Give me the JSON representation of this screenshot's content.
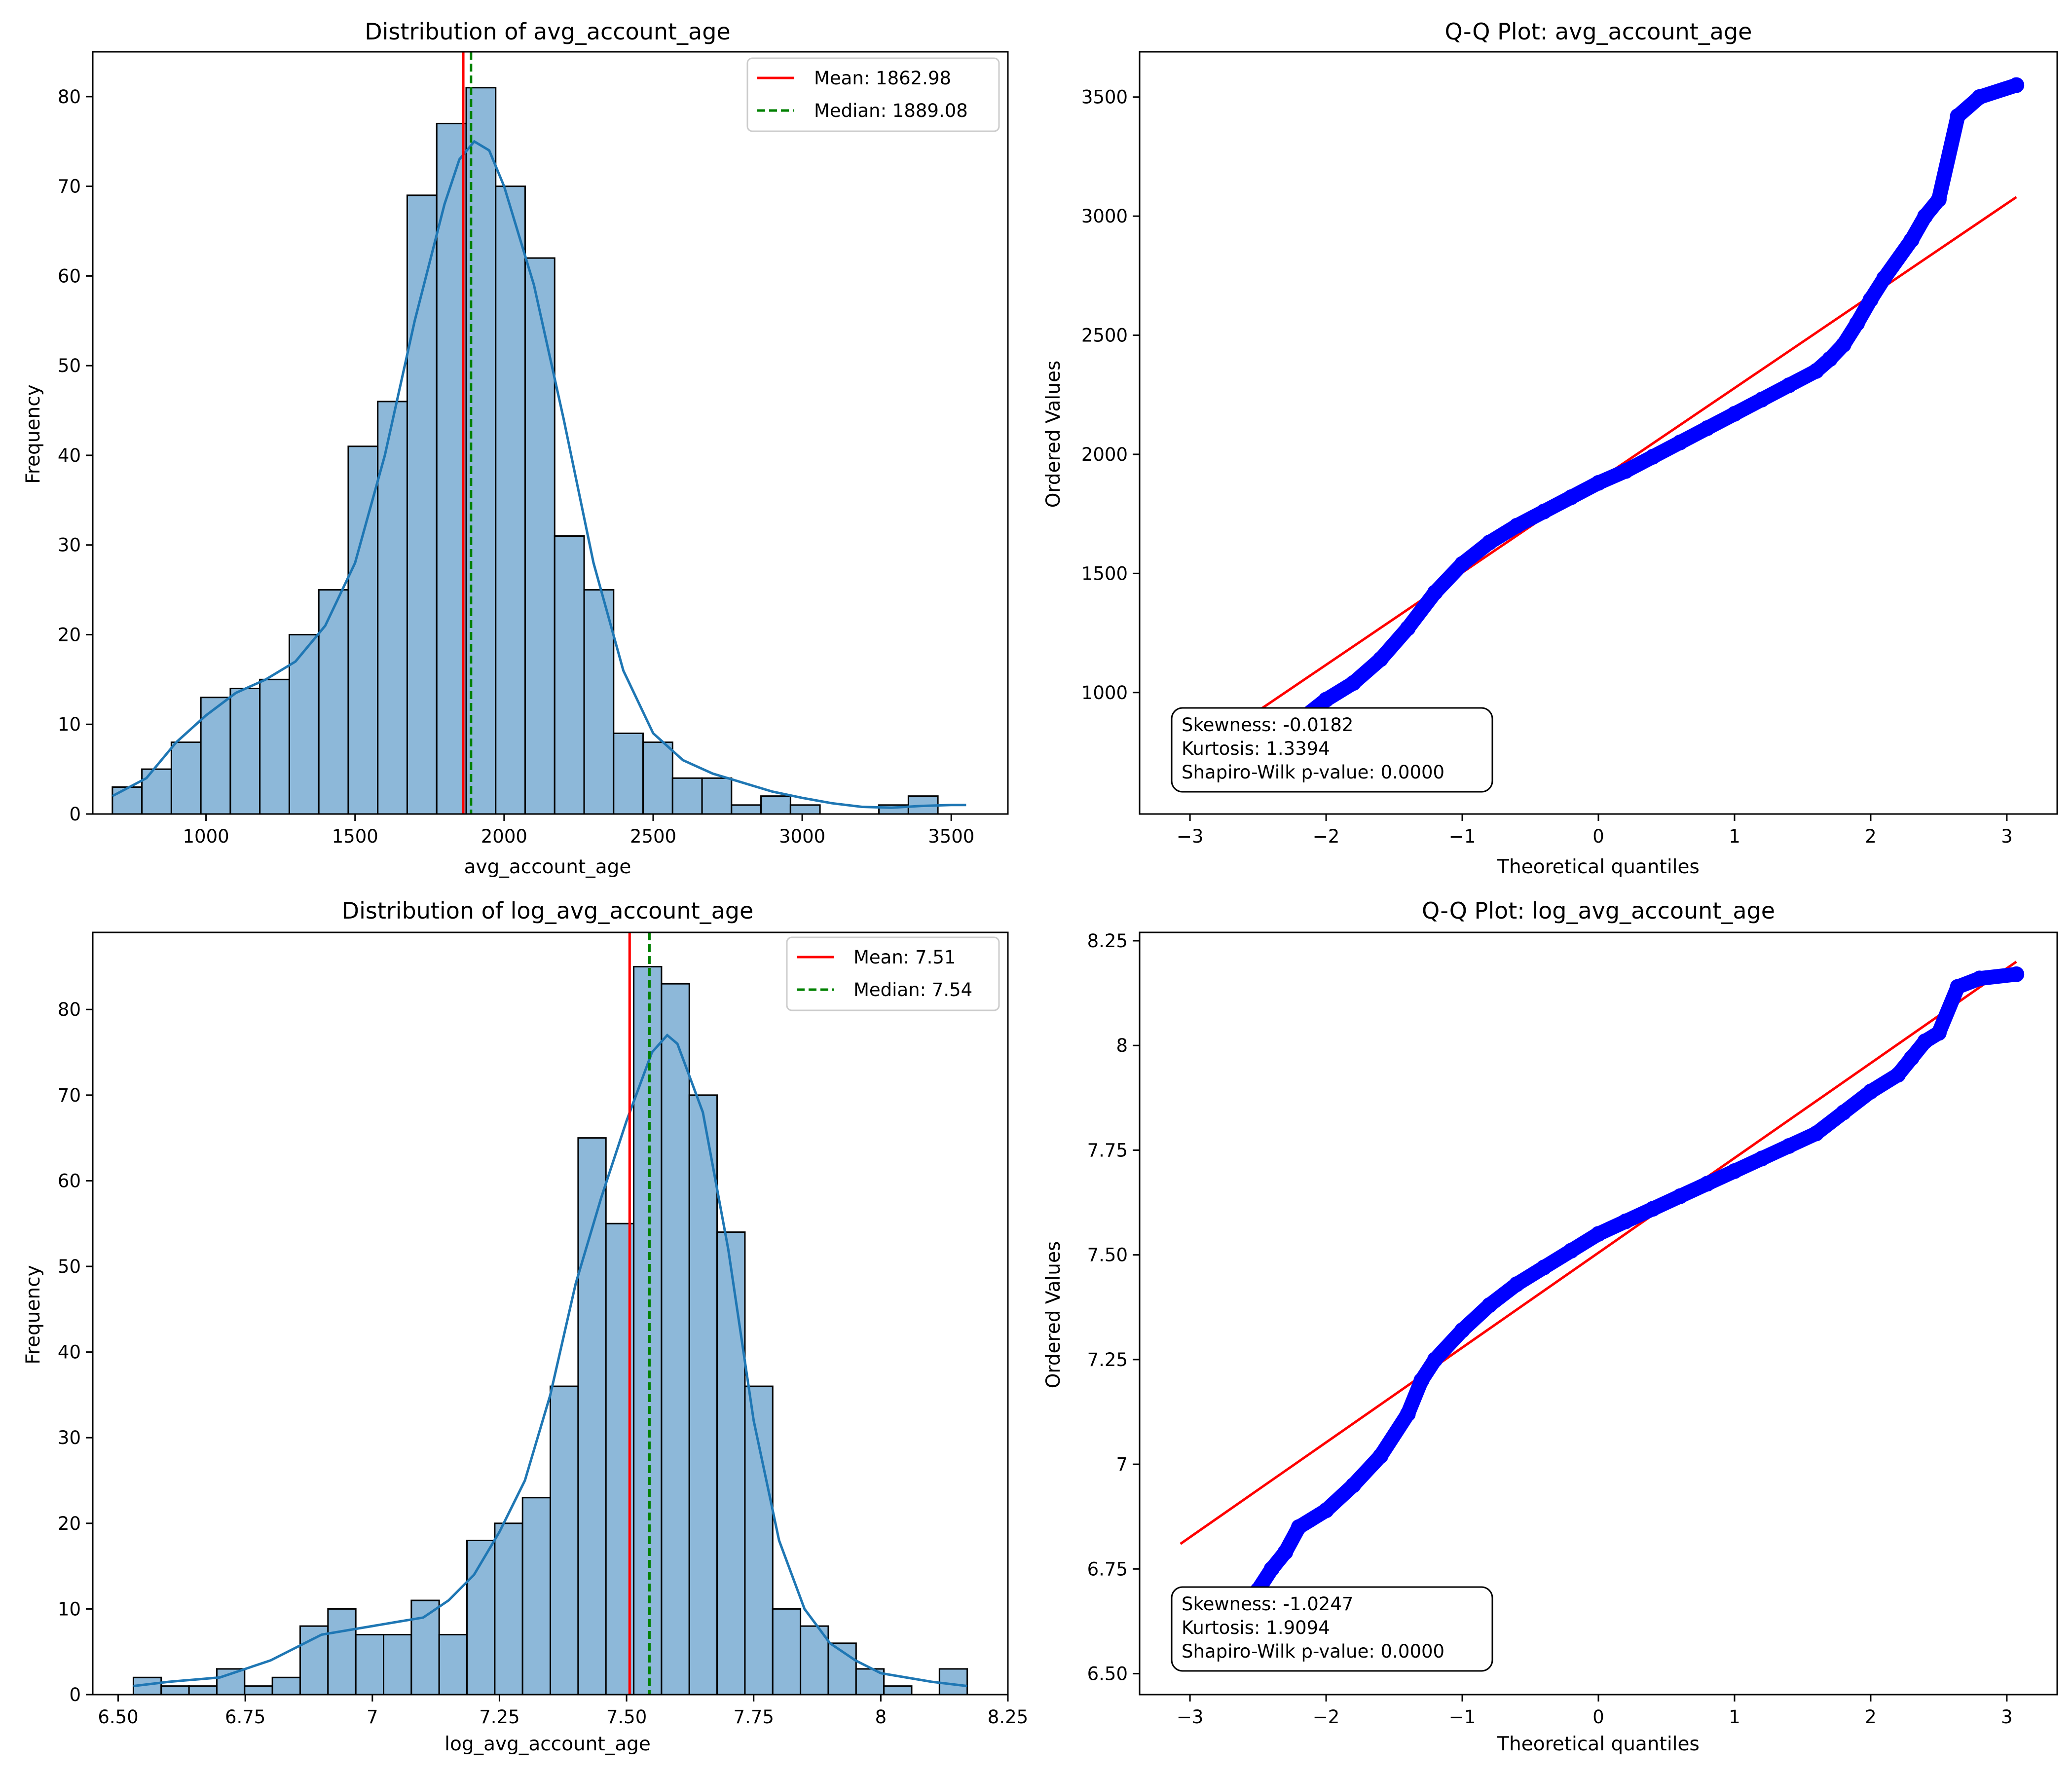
{
  "chart_data": [
    {
      "id": "hist_raw",
      "type": "bar",
      "title": "Distribution of avg_account_age",
      "xlabel": "avg_account_age",
      "ylabel": "Frequency",
      "xlim": [
        620,
        3690
      ],
      "ylim": [
        0,
        85
      ],
      "xticks": [
        1000,
        1500,
        2000,
        2500,
        3000,
        3500
      ],
      "yticks": [
        0,
        10,
        20,
        30,
        40,
        50,
        60,
        70,
        80
      ],
      "bin_start": 686,
      "bin_width": 98.9,
      "counts": [
        3,
        5,
        8,
        13,
        14,
        15,
        20,
        25,
        41,
        46,
        69,
        77,
        81,
        70,
        62,
        31,
        25,
        9,
        8,
        4,
        4,
        1,
        2,
        1,
        0,
        0,
        1,
        2
      ],
      "kde": {
        "x": [
          686,
          800,
          900,
          1000,
          1100,
          1200,
          1300,
          1400,
          1500,
          1600,
          1700,
          1800,
          1850,
          1900,
          1950,
          2000,
          2100,
          2200,
          2300,
          2400,
          2500,
          2600,
          2700,
          2800,
          2900,
          3000,
          3100,
          3200,
          3300,
          3400,
          3500,
          3550
        ],
        "y": [
          2,
          4,
          8,
          11,
          13.5,
          15,
          17,
          21,
          28,
          40,
          55,
          68,
          73,
          75,
          74,
          70,
          59,
          44,
          28,
          16,
          9,
          6,
          4.5,
          3.5,
          2.5,
          1.8,
          1.2,
          0.8,
          0.7,
          0.9,
          1,
          1
        ]
      },
      "series": [
        {
          "name": "Mean: 1862.98",
          "x": 1862.98,
          "color": "#ff0000",
          "style": "solid"
        },
        {
          "name": "Median: 1889.08",
          "x": 1889.08,
          "color": "#008000",
          "style": "dashed"
        }
      ],
      "legend_placement": "upper-right",
      "bar_color": "#8db8d9",
      "kde_color": "#1f77b4"
    },
    {
      "id": "qq_raw",
      "type": "scatter",
      "title": "Q-Q Plot: avg_account_age",
      "xlabel": "Theoretical quantiles",
      "ylabel": "Ordered Values",
      "xlim": [
        -3.37,
        3.37
      ],
      "ylim": [
        490,
        3690
      ],
      "xticks": [
        -3,
        -2,
        -1,
        0,
        1,
        2,
        3
      ],
      "yticks": [
        1000,
        1500,
        2000,
        2500,
        3000,
        3500
      ],
      "points": [
        [
          -3.07,
          686
        ],
        [
          -2.8,
          725
        ],
        [
          -2.6,
          760
        ],
        [
          -2.4,
          800
        ],
        [
          -2.2,
          880
        ],
        [
          -2.0,
          970
        ],
        [
          -1.8,
          1040
        ],
        [
          -1.6,
          1140
        ],
        [
          -1.4,
          1270
        ],
        [
          -1.2,
          1420
        ],
        [
          -1.0,
          1540
        ],
        [
          -0.8,
          1630
        ],
        [
          -0.6,
          1700
        ],
        [
          -0.4,
          1760
        ],
        [
          -0.2,
          1820
        ],
        [
          0.0,
          1880
        ],
        [
          0.2,
          1930
        ],
        [
          0.4,
          1990
        ],
        [
          0.6,
          2050
        ],
        [
          0.8,
          2110
        ],
        [
          1.0,
          2170
        ],
        [
          1.2,
          2230
        ],
        [
          1.4,
          2290
        ],
        [
          1.6,
          2350
        ],
        [
          1.7,
          2400
        ],
        [
          1.8,
          2460
        ],
        [
          1.9,
          2550
        ],
        [
          2.0,
          2650
        ],
        [
          2.1,
          2740
        ],
        [
          2.3,
          2900
        ],
        [
          2.4,
          3000
        ],
        [
          2.5,
          3070
        ],
        [
          2.64,
          3420
        ],
        [
          2.8,
          3500
        ],
        [
          3.07,
          3550
        ]
      ],
      "fit_line": {
        "x": [
          -3.07,
          3.07
        ],
        "y": [
          702,
          3080
        ],
        "color": "#ff0000"
      },
      "point_color": "#0000ff",
      "stats": [
        "Skewness: -0.0182",
        "Kurtosis: 1.3394",
        "Shapiro-Wilk p-value: 0.0000"
      ]
    },
    {
      "id": "hist_log",
      "type": "bar",
      "title": "Distribution of log_avg_account_age",
      "xlabel": "log_avg_account_age",
      "ylabel": "Frequency",
      "xlim": [
        6.45,
        8.25
      ],
      "ylim": [
        0,
        89
      ],
      "xticks": [
        6.5,
        6.75,
        7.0,
        7.25,
        7.5,
        7.75,
        8.0,
        8.25
      ],
      "yticks": [
        0,
        10,
        20,
        30,
        40,
        50,
        60,
        70,
        80
      ],
      "bin_start": 6.53,
      "bin_width": 0.05467,
      "counts": [
        2,
        1,
        1,
        3,
        1,
        2,
        8,
        10,
        7,
        7,
        11,
        7,
        18,
        20,
        23,
        36,
        65,
        55,
        85,
        83,
        70,
        54,
        36,
        10,
        8,
        6,
        3,
        1,
        0,
        3
      ],
      "kde": {
        "x": [
          6.53,
          6.6,
          6.7,
          6.8,
          6.9,
          7.0,
          7.05,
          7.1,
          7.15,
          7.2,
          7.25,
          7.3,
          7.35,
          7.4,
          7.45,
          7.5,
          7.55,
          7.58,
          7.6,
          7.65,
          7.7,
          7.75,
          7.8,
          7.85,
          7.9,
          7.95,
          8.0,
          8.1,
          8.17
        ],
        "y": [
          1,
          1.5,
          2,
          4,
          7,
          8,
          8.5,
          9,
          11,
          14,
          19,
          25,
          35,
          48,
          58,
          67,
          75,
          77,
          76,
          68,
          52,
          32,
          18,
          10,
          6,
          4,
          2.5,
          1.5,
          1
        ]
      },
      "series": [
        {
          "name": "Mean: 7.51",
          "x": 7.506,
          "color": "#ff0000",
          "style": "solid"
        },
        {
          "name": "Median: 7.54",
          "x": 7.545,
          "color": "#008000",
          "style": "dashed"
        }
      ],
      "legend_placement": "upper-right",
      "bar_color": "#8db8d9",
      "kde_color": "#1f77b4"
    },
    {
      "id": "qq_log",
      "type": "scatter",
      "title": "Q-Q Plot: log_avg_account_age",
      "xlabel": "Theoretical quantiles",
      "ylabel": "Ordered Values",
      "xlim": [
        -3.37,
        3.37
      ],
      "ylim": [
        6.45,
        8.27
      ],
      "xticks": [
        -3,
        -2,
        -1,
        0,
        1,
        2,
        3
      ],
      "yticks": [
        6.5,
        6.75,
        7.0,
        7.25,
        7.5,
        7.75,
        8.0,
        8.25
      ],
      "points": [
        [
          -3.07,
          6.53
        ],
        [
          -2.8,
          6.58
        ],
        [
          -2.6,
          6.65
        ],
        [
          -2.5,
          6.7
        ],
        [
          -2.4,
          6.75
        ],
        [
          -2.3,
          6.79
        ],
        [
          -2.2,
          6.85
        ],
        [
          -2.0,
          6.89
        ],
        [
          -1.8,
          6.95
        ],
        [
          -1.6,
          7.02
        ],
        [
          -1.4,
          7.12
        ],
        [
          -1.3,
          7.2
        ],
        [
          -1.2,
          7.25
        ],
        [
          -1.0,
          7.32
        ],
        [
          -0.8,
          7.38
        ],
        [
          -0.6,
          7.43
        ],
        [
          -0.4,
          7.47
        ],
        [
          -0.2,
          7.51
        ],
        [
          0.0,
          7.55
        ],
        [
          0.2,
          7.58
        ],
        [
          0.4,
          7.61
        ],
        [
          0.6,
          7.64
        ],
        [
          0.8,
          7.67
        ],
        [
          1.0,
          7.7
        ],
        [
          1.2,
          7.73
        ],
        [
          1.4,
          7.76
        ],
        [
          1.6,
          7.79
        ],
        [
          1.8,
          7.84
        ],
        [
          2.0,
          7.89
        ],
        [
          2.2,
          7.93
        ],
        [
          2.3,
          7.97
        ],
        [
          2.4,
          8.01
        ],
        [
          2.5,
          8.03
        ],
        [
          2.64,
          8.14
        ],
        [
          2.8,
          8.16
        ],
        [
          3.07,
          8.17
        ]
      ],
      "fit_line": {
        "x": [
          -3.07,
          3.07
        ],
        "y": [
          6.81,
          8.2
        ],
        "color": "#ff0000"
      },
      "point_color": "#0000ff",
      "stats": [
        "Skewness: -1.0247",
        "Kurtosis: 1.9094",
        "Shapiro-Wilk p-value: 0.0000"
      ]
    }
  ]
}
